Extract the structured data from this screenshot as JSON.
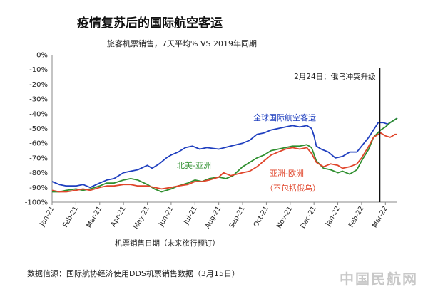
{
  "title": "疫情复苏后的国际航空客运",
  "subtitle": "旅客机票销售，7天平均% VS 2019年同期",
  "source": "数据信源：国际航协经济使用DDS机票销售数据（3月15日）",
  "watermark": "中国民航网",
  "chart_data": {
    "type": "line",
    "xlabel": "机票销售日期（未来旅行预订）",
    "ylabel": "",
    "ylim": [
      -100,
      0
    ],
    "yticks": [
      "0%",
      "-10%",
      "-20%",
      "-30%",
      "-40%",
      "-50%",
      "-60%",
      "-70%",
      "-80%",
      "-90%",
      "-100%"
    ],
    "categories": [
      "Jan-21",
      "Feb-21",
      "Mar-21",
      "Apr-21",
      "May-21",
      "Jun-21",
      "Jul-21",
      "Aug-21",
      "Sep-21",
      "Oct-21",
      "Nov-21",
      "Dec-21",
      "Jan-22",
      "Feb-22",
      "Mar-22"
    ],
    "x_range": [
      0,
      14.5
    ],
    "grid": false,
    "annotation": {
      "x": 13.77,
      "label": "2月24日：俄乌冲突升级"
    },
    "series": [
      {
        "name": "全球国际航空客运",
        "color": "#1f3fbf",
        "points": [
          [
            0,
            -86
          ],
          [
            0.3,
            -88
          ],
          [
            0.6,
            -89
          ],
          [
            1,
            -89
          ],
          [
            1.3,
            -88
          ],
          [
            1.6,
            -90
          ],
          [
            2,
            -87
          ],
          [
            2.3,
            -85
          ],
          [
            2.6,
            -84
          ],
          [
            3,
            -80
          ],
          [
            3.3,
            -79
          ],
          [
            3.6,
            -78
          ],
          [
            4,
            -75
          ],
          [
            4.2,
            -77
          ],
          [
            4.5,
            -74
          ],
          [
            4.8,
            -70
          ],
          [
            5,
            -68
          ],
          [
            5.3,
            -66
          ],
          [
            5.6,
            -63
          ],
          [
            5.9,
            -62
          ],
          [
            6.2,
            -64
          ],
          [
            6.5,
            -63
          ],
          [
            7,
            -64
          ],
          [
            7.5,
            -62
          ],
          [
            8,
            -60
          ],
          [
            8.3,
            -58
          ],
          [
            8.6,
            -54
          ],
          [
            8.9,
            -53
          ],
          [
            9.2,
            -51
          ],
          [
            9.5,
            -50
          ],
          [
            9.8,
            -49
          ],
          [
            10.1,
            -48
          ],
          [
            10.4,
            -49
          ],
          [
            10.7,
            -48
          ],
          [
            10.9,
            -50
          ],
          [
            11,
            -55
          ],
          [
            11.1,
            -62
          ],
          [
            11.3,
            -64
          ],
          [
            11.6,
            -66
          ],
          [
            11.9,
            -70
          ],
          [
            12.2,
            -69
          ],
          [
            12.5,
            -66
          ],
          [
            12.8,
            -66
          ],
          [
            13,
            -62
          ],
          [
            13.3,
            -56
          ],
          [
            13.5,
            -51
          ],
          [
            13.7,
            -46
          ],
          [
            13.9,
            -46
          ],
          [
            14.1,
            -47
          ],
          [
            14.3,
            -45
          ],
          [
            14.5,
            -43
          ]
        ]
      },
      {
        "name": "北美-亚洲",
        "color": "#2f8f2f",
        "points": [
          [
            0,
            -93
          ],
          [
            0.3,
            -93
          ],
          [
            0.6,
            -92
          ],
          [
            1,
            -91
          ],
          [
            1.3,
            -92
          ],
          [
            1.6,
            -91
          ],
          [
            2,
            -89
          ],
          [
            2.3,
            -87
          ],
          [
            2.6,
            -87
          ],
          [
            3,
            -85
          ],
          [
            3.3,
            -84
          ],
          [
            3.6,
            -85
          ],
          [
            4,
            -88
          ],
          [
            4.3,
            -91
          ],
          [
            4.6,
            -93
          ],
          [
            5,
            -91
          ],
          [
            5.3,
            -89
          ],
          [
            5.7,
            -87
          ],
          [
            6,
            -85
          ],
          [
            6.3,
            -86
          ],
          [
            6.6,
            -84
          ],
          [
            7,
            -83
          ],
          [
            7.3,
            -84
          ],
          [
            7.6,
            -82
          ],
          [
            8,
            -76
          ],
          [
            8.3,
            -73
          ],
          [
            8.6,
            -70
          ],
          [
            8.9,
            -68
          ],
          [
            9.2,
            -65
          ],
          [
            9.5,
            -64
          ],
          [
            9.8,
            -63
          ],
          [
            10.1,
            -62
          ],
          [
            10.4,
            -62
          ],
          [
            10.7,
            -61
          ],
          [
            10.9,
            -63
          ],
          [
            11.1,
            -72
          ],
          [
            11.4,
            -77
          ],
          [
            11.7,
            -78
          ],
          [
            12,
            -80
          ],
          [
            12.2,
            -79
          ],
          [
            12.5,
            -81
          ],
          [
            12.8,
            -78
          ],
          [
            13,
            -72
          ],
          [
            13.3,
            -64
          ],
          [
            13.5,
            -56
          ],
          [
            13.8,
            -51
          ],
          [
            14,
            -49
          ],
          [
            14.2,
            -46
          ],
          [
            14.4,
            -44
          ],
          [
            14.5,
            -43
          ]
        ]
      },
      {
        "name": "亚洲-欧洲（不包括俄乌）",
        "color": "#e0452b",
        "points": [
          [
            0,
            -92
          ],
          [
            0.3,
            -93
          ],
          [
            0.6,
            -93
          ],
          [
            1,
            -92
          ],
          [
            1.3,
            -91
          ],
          [
            1.6,
            -92
          ],
          [
            2,
            -90
          ],
          [
            2.3,
            -89
          ],
          [
            2.6,
            -89
          ],
          [
            3,
            -88
          ],
          [
            3.3,
            -88
          ],
          [
            3.6,
            -89
          ],
          [
            4,
            -89
          ],
          [
            4.3,
            -90
          ],
          [
            4.6,
            -91
          ],
          [
            5,
            -90
          ],
          [
            5.3,
            -89
          ],
          [
            5.7,
            -88
          ],
          [
            6,
            -86
          ],
          [
            6.3,
            -86
          ],
          [
            6.6,
            -85
          ],
          [
            7,
            -83
          ],
          [
            7.2,
            -80
          ],
          [
            7.5,
            -82
          ],
          [
            8,
            -80
          ],
          [
            8.3,
            -79
          ],
          [
            8.6,
            -76
          ],
          [
            8.9,
            -72
          ],
          [
            9.2,
            -68
          ],
          [
            9.5,
            -66
          ],
          [
            9.8,
            -64
          ],
          [
            10.1,
            -63
          ],
          [
            10.4,
            -64
          ],
          [
            10.7,
            -63
          ],
          [
            10.9,
            -67
          ],
          [
            11.1,
            -73
          ],
          [
            11.4,
            -76
          ],
          [
            11.7,
            -74
          ],
          [
            12,
            -75
          ],
          [
            12.2,
            -77
          ],
          [
            12.5,
            -76
          ],
          [
            12.8,
            -74
          ],
          [
            13,
            -70
          ],
          [
            13.3,
            -62
          ],
          [
            13.5,
            -56
          ],
          [
            13.8,
            -53
          ],
          [
            14,
            -55
          ],
          [
            14.2,
            -56
          ],
          [
            14.4,
            -54
          ],
          [
            14.5,
            -54
          ]
        ]
      }
    ]
  },
  "labels": {
    "global": "全球国际航空客运",
    "na_asia": "北美-亚洲",
    "asia_eu_1": "亚洲-欧洲",
    "asia_eu_2": "（不包括俄乌）"
  }
}
